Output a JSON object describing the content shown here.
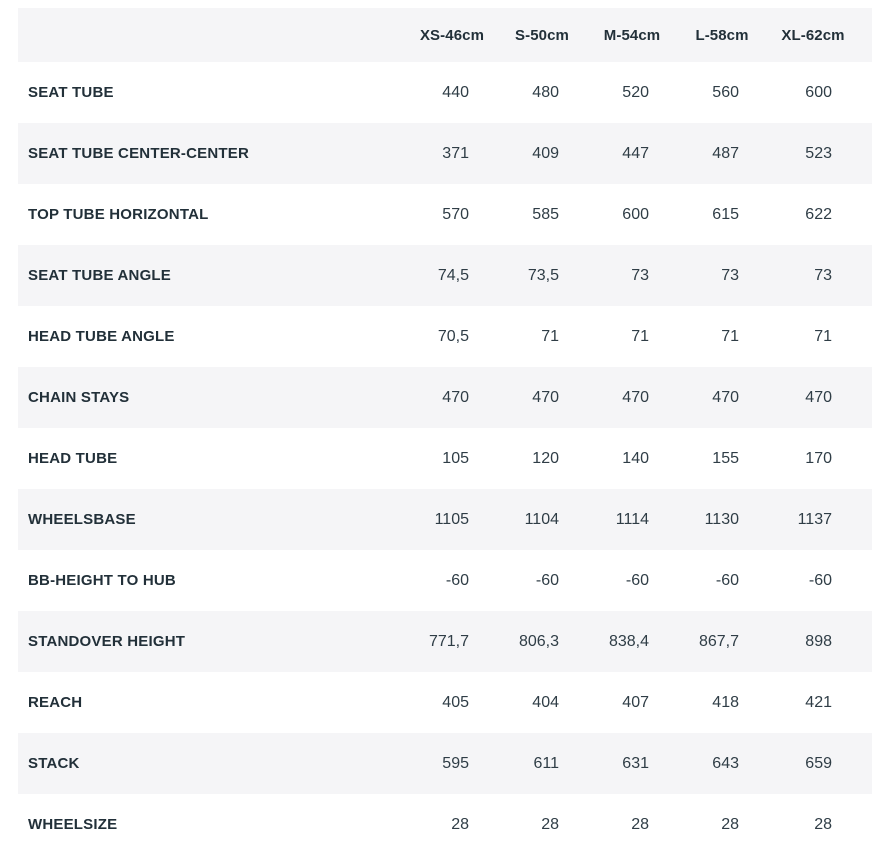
{
  "chart_data": {
    "type": "table",
    "title": "Bike frame geometry table",
    "columns": [
      "XS-46cm",
      "S-50cm",
      "M-54cm",
      "L-58cm",
      "XL-62cm"
    ],
    "rows": [
      {
        "label": "SEAT TUBE",
        "values": [
          "440",
          "480",
          "520",
          "560",
          "600"
        ]
      },
      {
        "label": "SEAT TUBE CENTER-CENTER",
        "values": [
          "371",
          "409",
          "447",
          "487",
          "523"
        ]
      },
      {
        "label": "TOP TUBE HORIZONTAL",
        "values": [
          "570",
          "585",
          "600",
          "615",
          "622"
        ]
      },
      {
        "label": "SEAT TUBE ANGLE",
        "values": [
          "74,5",
          "73,5",
          "73",
          "73",
          "73"
        ]
      },
      {
        "label": "HEAD TUBE ANGLE",
        "values": [
          "70,5",
          "71",
          "71",
          "71",
          "71"
        ]
      },
      {
        "label": "CHAIN STAYS",
        "values": [
          "470",
          "470",
          "470",
          "470",
          "470"
        ]
      },
      {
        "label": "HEAD TUBE",
        "values": [
          "105",
          "120",
          "140",
          "155",
          "170"
        ]
      },
      {
        "label": "WHEELSBASE",
        "values": [
          "1105",
          "1104",
          "1114",
          "1130",
          "1137"
        ]
      },
      {
        "label": "BB-HEIGHT TO HUB",
        "values": [
          "-60",
          "-60",
          "-60",
          "-60",
          "-60"
        ]
      },
      {
        "label": "STANDOVER HEIGHT",
        "values": [
          "771,7",
          "806,3",
          "838,4",
          "867,7",
          "898"
        ]
      },
      {
        "label": "REACH",
        "values": [
          "405",
          "404",
          "407",
          "418",
          "421"
        ]
      },
      {
        "label": "STACK",
        "values": [
          "595",
          "611",
          "631",
          "643",
          "659"
        ]
      },
      {
        "label": "WHEELSIZE",
        "values": [
          "28",
          "28",
          "28",
          "28",
          "28"
        ]
      }
    ],
    "layout": {
      "stripe_color": "#f5f5f7",
      "text_color": "#223039",
      "value_alignment": "right",
      "header_alignment": "center",
      "grid": "off"
    }
  }
}
